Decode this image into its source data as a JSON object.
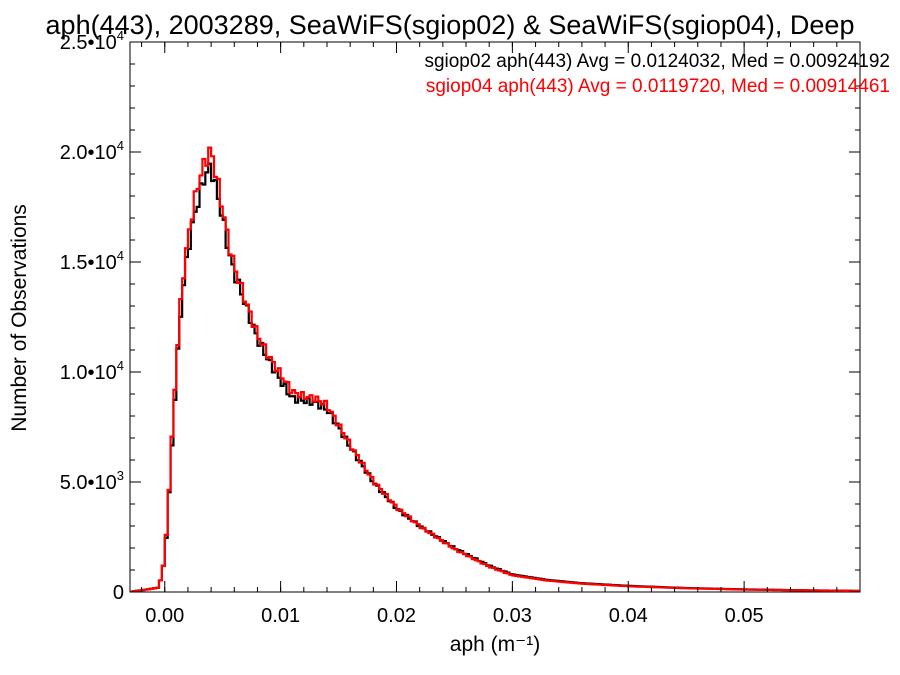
{
  "chart_data": {
    "type": "line",
    "title": "aph(443), 2003289, SeaWiFS(sgiop02) & SeaWiFS(sgiop04), Deep",
    "xlabel": "aph (m⁻¹)",
    "ylabel": "Number of Observations",
    "xlim": [
      -0.003,
      0.06
    ],
    "ylim": [
      0,
      25000
    ],
    "grid": false,
    "x_ticks": [
      {
        "value": 0.0,
        "label": "0.00"
      },
      {
        "value": 0.01,
        "label": "0.01"
      },
      {
        "value": 0.02,
        "label": "0.02"
      },
      {
        "value": 0.03,
        "label": "0.03"
      },
      {
        "value": 0.04,
        "label": "0.04"
      },
      {
        "value": 0.05,
        "label": "0.05"
      }
    ],
    "y_ticks": [
      {
        "value": 0,
        "mantissa": "0",
        "exponent": ""
      },
      {
        "value": 5000,
        "mantissa": "5.0•10",
        "exponent": "3"
      },
      {
        "value": 10000,
        "mantissa": "1.0•10",
        "exponent": "4"
      },
      {
        "value": 15000,
        "mantissa": "1.5•10",
        "exponent": "4"
      },
      {
        "value": 20000,
        "mantissa": "2.0•10",
        "exponent": "4"
      },
      {
        "value": 25000,
        "mantissa": "2.5•10",
        "exponent": "4"
      }
    ],
    "annotations": [
      {
        "text": "sgiop02 aph(443) Avg = 0.0124032, Med = 0.00924192",
        "color": "#000000"
      },
      {
        "text": "sgiop04 aph(443) Avg = 0.0119720, Med = 0.00914461",
        "color": "#ff0000"
      }
    ],
    "series": [
      {
        "color": "#000000",
        "x": [
          -0.003,
          -0.0005,
          0.0,
          0.0005,
          0.001,
          0.0015,
          0.002,
          0.0025,
          0.003,
          0.0035,
          0.004,
          0.0045,
          0.005,
          0.0055,
          0.006,
          0.0065,
          0.007,
          0.008,
          0.009,
          0.01,
          0.011,
          0.012,
          0.013,
          0.014,
          0.015,
          0.016,
          0.018,
          0.02,
          0.022,
          0.025,
          0.028,
          0.03,
          0.033,
          0.036,
          0.04,
          0.045,
          0.05,
          0.055,
          0.06
        ],
        "y": [
          0,
          200,
          1500,
          5500,
          10000,
          13500,
          15500,
          17000,
          18000,
          19000,
          19300,
          18200,
          17000,
          15500,
          14500,
          13800,
          13000,
          11500,
          10500,
          9600,
          8800,
          8700,
          8600,
          8300,
          7500,
          6600,
          5000,
          3800,
          3000,
          2000,
          1200,
          800,
          550,
          400,
          280,
          180,
          120,
          80,
          50
        ]
      },
      {
        "color": "#ff0000",
        "x": [
          -0.003,
          -0.0005,
          0.0,
          0.0005,
          0.001,
          0.0015,
          0.002,
          0.0025,
          0.003,
          0.0035,
          0.004,
          0.0045,
          0.005,
          0.0055,
          0.006,
          0.0065,
          0.007,
          0.008,
          0.009,
          0.01,
          0.011,
          0.012,
          0.013,
          0.014,
          0.015,
          0.016,
          0.018,
          0.02,
          0.022,
          0.025,
          0.028,
          0.03,
          0.033,
          0.036,
          0.04,
          0.045,
          0.05,
          0.055,
          0.06
        ],
        "y": [
          0,
          200,
          1500,
          5800,
          10400,
          14000,
          16000,
          17600,
          18800,
          19600,
          20100,
          18800,
          17400,
          15900,
          14800,
          14000,
          13200,
          11700,
          10700,
          9900,
          9100,
          8900,
          8800,
          8500,
          7600,
          6700,
          5050,
          3850,
          3000,
          1950,
          1150,
          760,
          520,
          380,
          260,
          170,
          110,
          75,
          45
        ]
      }
    ]
  }
}
